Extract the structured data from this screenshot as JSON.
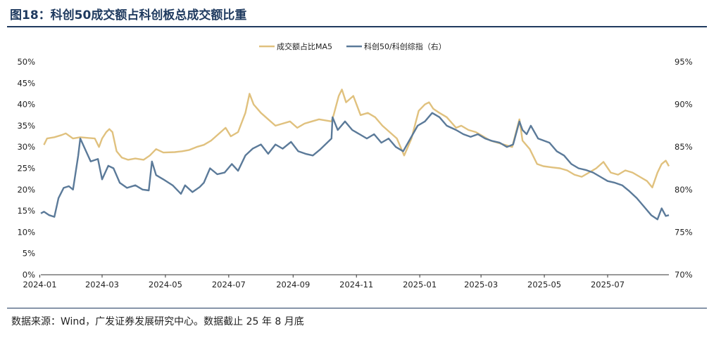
{
  "figure": {
    "title": "图18：科创50成交额占科创板总成交额比重",
    "source": "数据来源：Wind，广发证券发展研究中心。数据截止 25 年 8 月底"
  },
  "colors": {
    "title": "#1f3a5f",
    "ratio_series": "#e0c17e",
    "index_series": "#5b7a99"
  },
  "chart_data": {
    "type": "line",
    "x_ticks": [
      "2024-01",
      "2024-03",
      "2024-05",
      "2024-07",
      "2024-09",
      "2024-11",
      "2025-01",
      "2025-03",
      "2025-05",
      "2025-07"
    ],
    "x_range": [
      "2024-01-02",
      "2025-08-29"
    ],
    "y_left": {
      "ticks": [
        "50%",
        "45%",
        "40%",
        "35%",
        "30%",
        "25%",
        "20%",
        "15%",
        "10%",
        "5%",
        "0%"
      ],
      "min": 0,
      "max": 50
    },
    "y_right": {
      "ticks": [
        "95%",
        "90%",
        "85%",
        "80%",
        "75%",
        "70%"
      ],
      "min": 70,
      "max": 95
    },
    "grid": false,
    "legend_position": "top-center",
    "series": [
      {
        "name": "成交额占比MA5",
        "axis": "left",
        "color": "#e0c17e",
        "points": [
          [
            "2024-01-05",
            30.5
          ],
          [
            "2024-01-08",
            32.0
          ],
          [
            "2024-01-15",
            32.3
          ],
          [
            "2024-01-22",
            32.8
          ],
          [
            "2024-01-26",
            33.2
          ],
          [
            "2024-02-02",
            32.0
          ],
          [
            "2024-02-09",
            32.3
          ],
          [
            "2024-02-23",
            32.0
          ],
          [
            "2024-02-27",
            30.0
          ],
          [
            "2024-03-01",
            32.0
          ],
          [
            "2024-03-05",
            33.5
          ],
          [
            "2024-03-08",
            34.2
          ],
          [
            "2024-03-11",
            33.5
          ],
          [
            "2024-03-15",
            29.0
          ],
          [
            "2024-03-20",
            27.5
          ],
          [
            "2024-03-26",
            27.0
          ],
          [
            "2024-04-02",
            27.3
          ],
          [
            "2024-04-10",
            27.0
          ],
          [
            "2024-04-16",
            28.0
          ],
          [
            "2024-04-22",
            29.5
          ],
          [
            "2024-04-29",
            28.7
          ],
          [
            "2024-05-10",
            28.8
          ],
          [
            "2024-05-17",
            29.0
          ],
          [
            "2024-05-24",
            29.3
          ],
          [
            "2024-05-31",
            30.0
          ],
          [
            "2024-06-07",
            30.5
          ],
          [
            "2024-06-14",
            31.5
          ],
          [
            "2024-06-21",
            33.0
          ],
          [
            "2024-06-28",
            34.5
          ],
          [
            "2024-07-03",
            32.5
          ],
          [
            "2024-07-10",
            33.5
          ],
          [
            "2024-07-17",
            38.0
          ],
          [
            "2024-07-21",
            42.5
          ],
          [
            "2024-07-25",
            40.0
          ],
          [
            "2024-08-01",
            38.0
          ],
          [
            "2024-08-08",
            36.5
          ],
          [
            "2024-08-15",
            35.0
          ],
          [
            "2024-08-22",
            35.5
          ],
          [
            "2024-08-29",
            36.0
          ],
          [
            "2024-09-05",
            34.5
          ],
          [
            "2024-09-12",
            35.5
          ],
          [
            "2024-09-19",
            36.0
          ],
          [
            "2024-09-26",
            36.5
          ],
          [
            "2024-10-08",
            36.0
          ],
          [
            "2024-10-10",
            37.5
          ],
          [
            "2024-10-15",
            42.0
          ],
          [
            "2024-10-18",
            43.5
          ],
          [
            "2024-10-22",
            40.5
          ],
          [
            "2024-10-29",
            42.0
          ],
          [
            "2024-11-05",
            37.5
          ],
          [
            "2024-11-12",
            38.0
          ],
          [
            "2024-11-19",
            37.0
          ],
          [
            "2024-11-26",
            35.0
          ],
          [
            "2024-12-03",
            33.5
          ],
          [
            "2024-12-10",
            32.0
          ],
          [
            "2024-12-17",
            28.0
          ],
          [
            "2024-12-24",
            32.0
          ],
          [
            "2024-12-31",
            38.5
          ],
          [
            "2025-01-06",
            40.0
          ],
          [
            "2025-01-10",
            40.5
          ],
          [
            "2025-01-14",
            39.0
          ],
          [
            "2025-01-20",
            38.0
          ],
          [
            "2025-01-27",
            37.0
          ],
          [
            "2025-02-05",
            34.5
          ],
          [
            "2025-02-10",
            35.0
          ],
          [
            "2025-02-17",
            34.0
          ],
          [
            "2025-02-24",
            33.5
          ],
          [
            "2025-03-03",
            32.5
          ],
          [
            "2025-03-10",
            31.5
          ],
          [
            "2025-03-17",
            31.0
          ],
          [
            "2025-03-24",
            30.5
          ],
          [
            "2025-03-31",
            30.0
          ],
          [
            "2025-04-07",
            36.5
          ],
          [
            "2025-04-10",
            31.5
          ],
          [
            "2025-04-17",
            29.5
          ],
          [
            "2025-04-24",
            26.0
          ],
          [
            "2025-04-30",
            25.5
          ],
          [
            "2025-05-09",
            25.2
          ],
          [
            "2025-05-16",
            25.0
          ],
          [
            "2025-05-23",
            24.5
          ],
          [
            "2025-05-30",
            23.5
          ],
          [
            "2025-06-06",
            23.0
          ],
          [
            "2025-06-13",
            24.0
          ],
          [
            "2025-06-20",
            25.0
          ],
          [
            "2025-06-27",
            26.5
          ],
          [
            "2025-07-04",
            24.0
          ],
          [
            "2025-07-11",
            23.5
          ],
          [
            "2025-07-18",
            24.5
          ],
          [
            "2025-07-25",
            24.0
          ],
          [
            "2025-08-01",
            23.0
          ],
          [
            "2025-08-08",
            22.0
          ],
          [
            "2025-08-13",
            20.5
          ],
          [
            "2025-08-18",
            24.0
          ],
          [
            "2025-08-22",
            26.0
          ],
          [
            "2025-08-26",
            26.8
          ],
          [
            "2025-08-29",
            25.5
          ]
        ]
      },
      {
        "name": "科创50/科创综指（右）",
        "axis": "right",
        "color": "#5b7a99",
        "points": [
          [
            "2024-01-02",
            77.2
          ],
          [
            "2024-01-05",
            77.4
          ],
          [
            "2024-01-10",
            77.0
          ],
          [
            "2024-01-15",
            76.8
          ],
          [
            "2024-01-19",
            79.0
          ],
          [
            "2024-01-24",
            80.2
          ],
          [
            "2024-01-29",
            80.4
          ],
          [
            "2024-02-02",
            80.0
          ],
          [
            "2024-02-07",
            84.0
          ],
          [
            "2024-02-09",
            86.0
          ],
          [
            "2024-02-19",
            83.3
          ],
          [
            "2024-02-26",
            83.6
          ],
          [
            "2024-03-01",
            81.2
          ],
          [
            "2024-03-07",
            82.8
          ],
          [
            "2024-03-12",
            82.5
          ],
          [
            "2024-03-18",
            80.8
          ],
          [
            "2024-03-25",
            80.2
          ],
          [
            "2024-04-02",
            80.5
          ],
          [
            "2024-04-09",
            80.0
          ],
          [
            "2024-04-15",
            79.9
          ],
          [
            "2024-04-18",
            83.3
          ],
          [
            "2024-04-22",
            81.7
          ],
          [
            "2024-04-29",
            81.2
          ],
          [
            "2024-05-08",
            80.5
          ],
          [
            "2024-05-16",
            79.5
          ],
          [
            "2024-05-20",
            80.5
          ],
          [
            "2024-05-27",
            79.7
          ],
          [
            "2024-06-03",
            80.3
          ],
          [
            "2024-06-07",
            80.8
          ],
          [
            "2024-06-13",
            82.5
          ],
          [
            "2024-06-20",
            81.8
          ],
          [
            "2024-06-27",
            82.0
          ],
          [
            "2024-07-04",
            83.0
          ],
          [
            "2024-07-10",
            82.2
          ],
          [
            "2024-07-17",
            84.0
          ],
          [
            "2024-07-24",
            84.8
          ],
          [
            "2024-08-01",
            85.3
          ],
          [
            "2024-08-08",
            84.2
          ],
          [
            "2024-08-15",
            85.3
          ],
          [
            "2024-08-22",
            84.8
          ],
          [
            "2024-08-30",
            85.6
          ],
          [
            "2024-09-06",
            84.5
          ],
          [
            "2024-09-13",
            84.2
          ],
          [
            "2024-09-20",
            84.0
          ],
          [
            "2024-09-27",
            84.7
          ],
          [
            "2024-10-08",
            86.0
          ],
          [
            "2024-10-09",
            88.5
          ],
          [
            "2024-10-14",
            87.0
          ],
          [
            "2024-10-21",
            88.0
          ],
          [
            "2024-10-28",
            87.0
          ],
          [
            "2024-11-04",
            86.5
          ],
          [
            "2024-11-11",
            86.0
          ],
          [
            "2024-11-18",
            86.5
          ],
          [
            "2024-11-25",
            85.5
          ],
          [
            "2024-12-02",
            86.0
          ],
          [
            "2024-12-09",
            85.0
          ],
          [
            "2024-12-16",
            84.5
          ],
          [
            "2024-12-23",
            86.0
          ],
          [
            "2024-12-30",
            87.5
          ],
          [
            "2025-01-06",
            88.0
          ],
          [
            "2025-01-13",
            89.0
          ],
          [
            "2025-01-20",
            88.5
          ],
          [
            "2025-01-27",
            87.5
          ],
          [
            "2025-02-05",
            87.0
          ],
          [
            "2025-02-12",
            86.5
          ],
          [
            "2025-02-19",
            86.2
          ],
          [
            "2025-02-26",
            86.5
          ],
          [
            "2025-03-05",
            86.0
          ],
          [
            "2025-03-12",
            85.7
          ],
          [
            "2025-03-19",
            85.5
          ],
          [
            "2025-03-26",
            85.0
          ],
          [
            "2025-04-01",
            85.3
          ],
          [
            "2025-04-07",
            88.0
          ],
          [
            "2025-04-10",
            87.0
          ],
          [
            "2025-04-14",
            86.5
          ],
          [
            "2025-04-18",
            87.5
          ],
          [
            "2025-04-25",
            86.0
          ],
          [
            "2025-05-06",
            85.5
          ],
          [
            "2025-05-13",
            84.5
          ],
          [
            "2025-05-20",
            84.0
          ],
          [
            "2025-05-27",
            83.0
          ],
          [
            "2025-06-03",
            82.5
          ],
          [
            "2025-06-10",
            82.3
          ],
          [
            "2025-06-17",
            82.0
          ],
          [
            "2025-06-24",
            81.5
          ],
          [
            "2025-07-01",
            81.0
          ],
          [
            "2025-07-08",
            80.8
          ],
          [
            "2025-07-15",
            80.5
          ],
          [
            "2025-07-22",
            79.8
          ],
          [
            "2025-07-29",
            79.0
          ],
          [
            "2025-08-05",
            78.0
          ],
          [
            "2025-08-12",
            77.0
          ],
          [
            "2025-08-18",
            76.5
          ],
          [
            "2025-08-22",
            77.8
          ],
          [
            "2025-08-26",
            76.9
          ],
          [
            "2025-08-29",
            77.0
          ]
        ]
      }
    ]
  }
}
